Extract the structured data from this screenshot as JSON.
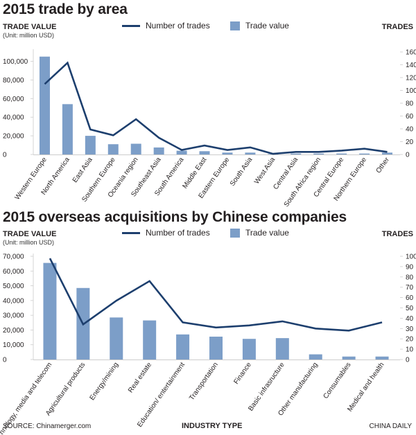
{
  "charts": {
    "0": {
      "title": "2015 trade by area",
      "left_axis_title": "TRADE VALUE",
      "left_axis_unit": "(Unit: million USD)",
      "right_axis_title": "TRADES",
      "legend_line": "Number of trades",
      "legend_bar": "Trade value"
    },
    "1": {
      "title": "2015 overseas acquisitions by Chinese companies",
      "left_axis_title": "TRADE VALUE",
      "left_axis_unit": "(Unit: million USD)",
      "right_axis_title": "TRADES",
      "legend_line": "Number of trades",
      "legend_bar": "Trade value"
    }
  },
  "footer": {
    "source": "SOURCE: Chinamerger.com",
    "xlabel": "INDUSTRY TYPE",
    "credit": "CHINA DAILY"
  },
  "colors": {
    "bar": "#7c9ec8",
    "line": "#1d3f6e",
    "text": "#231f20",
    "grid": "#cccccc"
  },
  "chart_data": [
    {
      "type": "bar",
      "title": "2015 trade by area",
      "ylabel": "TRADE VALUE",
      "y2label": "TRADES",
      "categories": [
        "Western Europe",
        "North America",
        "East Asia",
        "Southern Europe",
        "Oceania region",
        "Southeast Asia",
        "South America",
        "Middle East",
        "Eastern Europe",
        "South Asia",
        "West Asia",
        "Central Asia",
        "South Africa region",
        "Central Europe",
        "Northern Europe",
        "Other"
      ],
      "series": [
        {
          "name": "Trade value",
          "axis": "left",
          "values": [
            105000,
            54000,
            20000,
            11000,
            11500,
            7500,
            4000,
            3500,
            2000,
            2000,
            500,
            1000,
            1000,
            1000,
            1000,
            2000
          ]
        },
        {
          "name": "Number of trades",
          "axis": "right",
          "type": "line",
          "values": [
            110,
            143,
            39,
            30,
            55,
            26,
            7,
            14,
            7,
            11,
            1,
            4,
            4,
            6,
            9,
            4
          ]
        }
      ],
      "ylim": [
        0,
        110000
      ],
      "y2lim": [
        0,
        160
      ],
      "yticks": [
        0,
        20000,
        40000,
        60000,
        80000,
        100000
      ],
      "ytick_labels": [
        "0",
        "20,000",
        "40,000",
        "60,000",
        "80,000",
        "100,000"
      ],
      "y2ticks": [
        0,
        20,
        40,
        60,
        80,
        100,
        120,
        140,
        160
      ]
    },
    {
      "type": "bar",
      "title": "2015 overseas acquisitions by Chinese companies",
      "ylabel": "TRADE VALUE",
      "y2label": "TRADES",
      "xlabel": "INDUSTRY TYPE",
      "categories": [
        "Technology, media and telecom",
        "Agricultural products",
        "Energy/mining",
        "Real estate",
        "Education/ entertainment",
        "Transportation",
        "Finance",
        "Basic infrasructure",
        "Other manufacturing",
        "Consumables",
        "Medical and health"
      ],
      "series": [
        {
          "name": "Trade value",
          "axis": "left",
          "values": [
            65500,
            48500,
            28500,
            26500,
            17000,
            15500,
            14000,
            14500,
            3500,
            2000,
            2000
          ]
        },
        {
          "name": "Number of trades",
          "axis": "right",
          "type": "line",
          "values": [
            98,
            34,
            57,
            76,
            36,
            31,
            33,
            37,
            30,
            28,
            36
          ]
        }
      ],
      "ylim": [
        0,
        70000
      ],
      "y2lim": [
        0,
        100
      ],
      "yticks": [
        0,
        10000,
        20000,
        30000,
        40000,
        50000,
        60000,
        70000
      ],
      "ytick_labels": [
        "0",
        "10,000",
        "20,000",
        "30,000",
        "40,000",
        "50,000",
        "60,000",
        "70,000"
      ],
      "y2ticks": [
        0,
        10,
        20,
        30,
        40,
        50,
        60,
        70,
        80,
        90,
        100
      ]
    }
  ]
}
